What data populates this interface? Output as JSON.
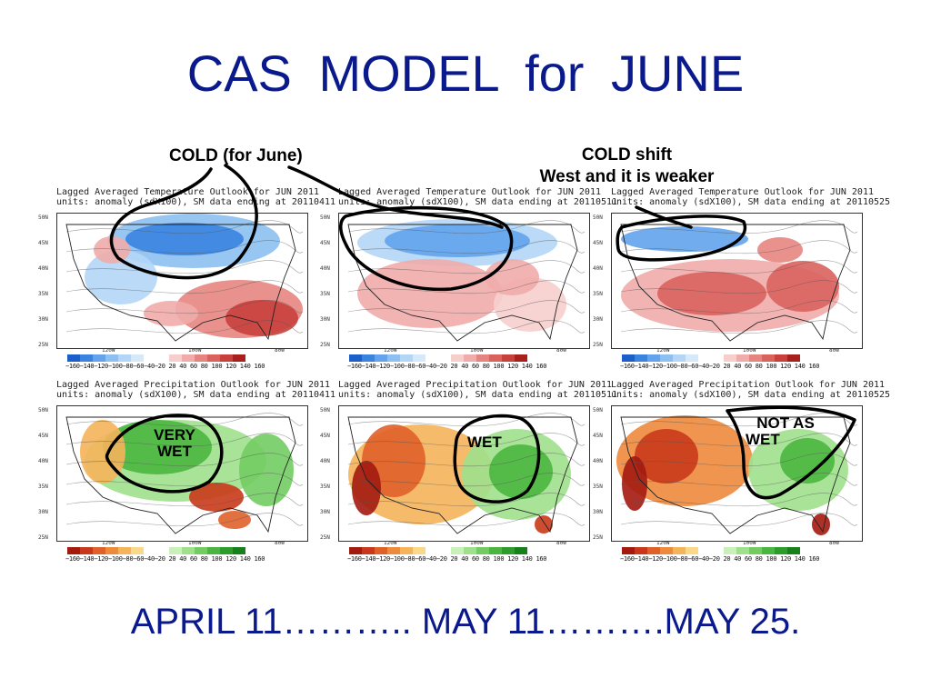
{
  "title": "CAS  MODEL  for  JUNE",
  "footer": "APRIL 11……….. MAY 11……….MAY 25.",
  "annotations": {
    "cold_label": "COLD (for June)",
    "shift_line1": "COLD  shift",
    "shift_line2": "West and it is  weaker",
    "very_wet_line1": "VERY",
    "very_wet_line2": "WET",
    "wet": "WET",
    "not_as_wet_line1": "NOT AS",
    "not_as_wet_line2": "WET"
  },
  "panels": [
    {
      "title_line1": "Lagged Averaged Temperature Outlook for JUN 2011",
      "title_line2": "units: anomaly (sdX100), SM data ending at 20110411",
      "kind": "temp"
    },
    {
      "title_line1": "Lagged Averaged Temperature Outlook for JUN 2011",
      "title_line2": "units: anomaly (sdX100), SM data ending at 20110511",
      "kind": "temp"
    },
    {
      "title_line1": "Lagged Averaged Temperature Outlook for JUN 2011",
      "title_line2": "units: anomaly (sdX100), SM data ending at 20110525",
      "kind": "temp"
    },
    {
      "title_line1": "Lagged Averaged Precipitation Outlook for JUN 2011",
      "title_line2": "units: anomaly (sdX100), SM data ending at 20110411",
      "kind": "precip"
    },
    {
      "title_line1": "Lagged Averaged Precipitation Outlook for JUN 2011",
      "title_line2": "units: anomaly (sdX100), SM data ending at 20110511",
      "kind": "precip"
    },
    {
      "title_line1": "Lagged Averaged Precipitation Outlook for JUN 2011",
      "title_line2": "units: anomaly (sdX100), SM data ending at 20110525",
      "kind": "precip"
    }
  ],
  "axes": {
    "lat_labels": [
      "50N",
      "45N",
      "40N",
      "35N",
      "30N",
      "25N"
    ],
    "lon_labels": [
      "120W",
      "100W",
      "80W"
    ]
  },
  "colorbar_ticks": "−160−140−120−100−80−60−40−20 20  40  60  80 100 120 140 160",
  "colors": {
    "title_blue": "#0a1a8c",
    "temp_cold": [
      "#1c5fc9",
      "#3a84e0",
      "#62a3ec",
      "#8cc0f2",
      "#b3d6f6",
      "#d6e9fa"
    ],
    "temp_warm": [
      "#f6cfcd",
      "#efacaa",
      "#e58581",
      "#d9625d",
      "#c8403c",
      "#a8201d"
    ],
    "precip_dry": [
      "#a31a0f",
      "#c9381a",
      "#e0602a",
      "#ee8a3c",
      "#f5b45a",
      "#fad88a"
    ],
    "precip_wet": [
      "#c8f0b8",
      "#9fe08c",
      "#72cc62",
      "#4ab640",
      "#2c9c2a",
      "#16801a"
    ]
  }
}
